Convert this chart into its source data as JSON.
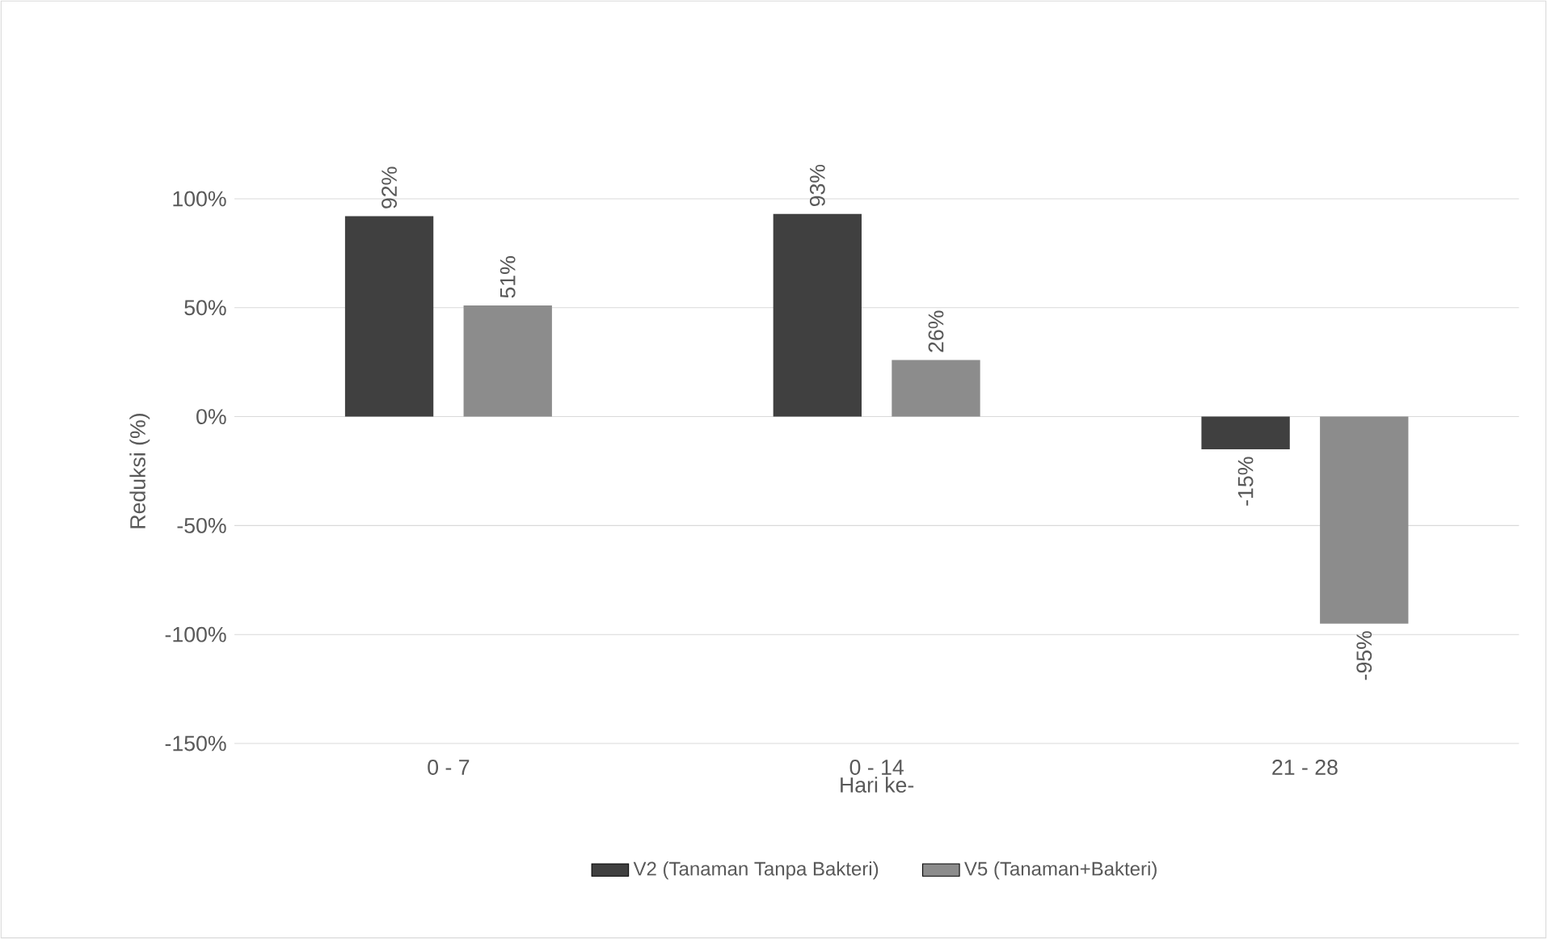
{
  "chart_data": {
    "type": "bar",
    "xlabel": "Hari ke-",
    "ylabel": "Reduksi (%)",
    "categories": [
      "0 - 7",
      "0 - 14",
      "21 - 28"
    ],
    "series": [
      {
        "name": "V2 (Tanaman Tanpa Bakteri)",
        "color": "#404040",
        "values": [
          92,
          93,
          -15
        ],
        "value_labels": [
          "92%",
          "93%",
          "-15%"
        ]
      },
      {
        "name": "V5 (Tanaman+Bakteri)",
        "color": "#8c8c8c",
        "values": [
          51,
          26,
          -95
        ],
        "value_labels": [
          "51%",
          "26%",
          "-95%"
        ]
      }
    ],
    "ylim": [
      -150,
      100
    ],
    "yticks": [
      {
        "value": -150,
        "label": "-150%"
      },
      {
        "value": -100,
        "label": "-100%"
      },
      {
        "value": -50,
        "label": "-50%"
      },
      {
        "value": 0,
        "label": "0%"
      },
      {
        "value": 50,
        "label": "50%"
      },
      {
        "value": 100,
        "label": "100%"
      }
    ],
    "grid": "y",
    "legend": "bottom"
  }
}
